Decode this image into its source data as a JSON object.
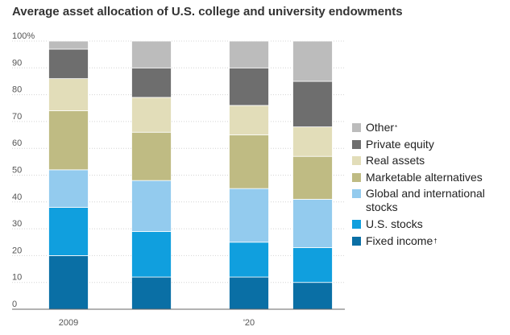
{
  "chart_data": {
    "type": "bar",
    "stacked": true,
    "title": "Average asset allocation of U.S. college and university endowments",
    "xlabel": "",
    "ylabel": "",
    "ylim": [
      0,
      100
    ],
    "yticks": [
      "100%",
      "90",
      "80",
      "70",
      "60",
      "50",
      "40",
      "30",
      "20",
      "10",
      "0"
    ],
    "categories": [
      "2009",
      "",
      "'20",
      ""
    ],
    "series": [
      {
        "name": "Fixed income",
        "note": "†",
        "color": "#0a6fa5",
        "values": [
          20,
          12,
          12,
          10
        ]
      },
      {
        "name": "U.S. stocks",
        "note": "",
        "color": "#109fde",
        "values": [
          18,
          17,
          13,
          13
        ]
      },
      {
        "name": "Global and international stocks",
        "note": "",
        "color": "#93cbee",
        "values": [
          14,
          19,
          20,
          18
        ]
      },
      {
        "name": "Marketable alternatives",
        "note": "",
        "color": "#bfbb83",
        "values": [
          22,
          18,
          20,
          16
        ]
      },
      {
        "name": "Real assets",
        "note": "",
        "color": "#e2ddb9",
        "values": [
          12,
          13,
          11,
          11
        ]
      },
      {
        "name": "Private equity",
        "note": "",
        "color": "#6e6e6e",
        "values": [
          11,
          11,
          14,
          17
        ]
      },
      {
        "name": "Other",
        "note": "*",
        "color": "#bcbcbc",
        "values": [
          3,
          10,
          10,
          15
        ]
      }
    ],
    "legend_order": [
      6,
      5,
      4,
      3,
      2,
      1,
      0
    ],
    "legend_labels": [
      "Other",
      "Private equity",
      "Real assets",
      "Marketable alternatives",
      "Global and international stocks",
      "U.S. stocks",
      "Fixed income"
    ],
    "legend": "right",
    "grid": true
  }
}
